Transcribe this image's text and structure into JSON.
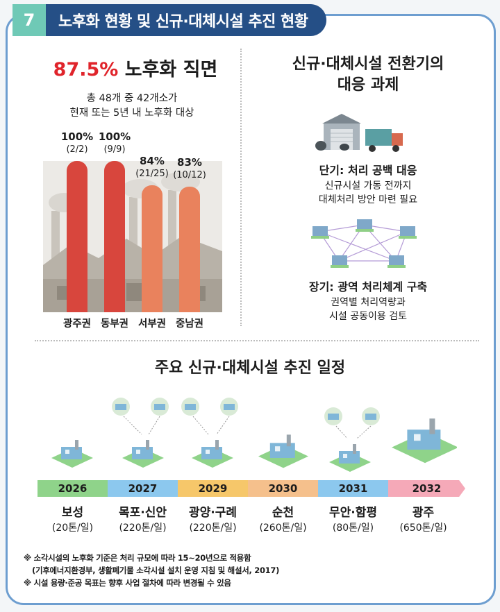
{
  "header": {
    "number": "7",
    "title": "노후화 현황 및 신규·대체시설 추진 현황"
  },
  "aging": {
    "headline_pct": "87.5%",
    "headline_text": "노후화 직면",
    "desc_line1": "총 48개 중 42개소가",
    "desc_line2": "현재 또는 5년 내  노후화 대상"
  },
  "chart_data": {
    "type": "bar",
    "categories": [
      "광주권",
      "동부권",
      "서부권",
      "중남권"
    ],
    "values": [
      100,
      100,
      84,
      83
    ],
    "value_labels": [
      "100%",
      "100%",
      "84%",
      "83%"
    ],
    "count_labels": [
      "(2/2)",
      "(9/9)",
      "(21/25)",
      "(10/12)"
    ],
    "ylim": [
      0,
      100
    ],
    "colors": [
      "#d8463d",
      "#d8463d",
      "#e9825d",
      "#e9825d"
    ]
  },
  "right": {
    "title_line1": "신규·대체시설 전환기의",
    "title_line2": "대응 과제",
    "short_term_title": "단기: 처리 공백 대응",
    "short_term_line1": "신규시설 가동 전까지",
    "short_term_line2": "대체처리 방안 마련 필요",
    "long_term_title": "장기: 광역 처리체계 구축",
    "long_term_line1": "권역별 처리역량과",
    "long_term_line2": "시설 공동이용 검토"
  },
  "schedule": {
    "title": "주요 신규·대체시설 추진 일정",
    "items": [
      {
        "year": "2026",
        "name": "보성",
        "capacity": "(20톤/일)",
        "color": "#8fd38a"
      },
      {
        "year": "2027",
        "name": "목포·신안",
        "capacity": "(220톤/일)",
        "color": "#8cc8ee"
      },
      {
        "year": "2029",
        "name": "광양·구례",
        "capacity": "(220톤/일)",
        "color": "#f6c76a"
      },
      {
        "year": "2030",
        "name": "순천",
        "capacity": "(260톤/일)",
        "color": "#f5c08c"
      },
      {
        "year": "2031",
        "name": "무안·함평",
        "capacity": "(80톤/일)",
        "color": "#8cc8ee"
      },
      {
        "year": "2032",
        "name": "광주",
        "capacity": "(650톤/일)",
        "color": "#f5a9b8"
      }
    ]
  },
  "notes": {
    "line1": "※ 소각시설의 노후화 기준은 처리 규모에 따라 15~20년으로 적용함",
    "line2": "(기후에너지환경부, 생활폐기물 소각시설 설치 운영 지침 및 해설서, 2017)",
    "line3": "※ 시설 용량·준공 목표는 향후 사업 절차에 따라 변경될 수 있음"
  },
  "colors": {
    "accent_teal": "#6fc9b6",
    "header_navy": "#254f86",
    "highlight_red": "#e0242b",
    "border_blue": "#6d9ed0"
  }
}
